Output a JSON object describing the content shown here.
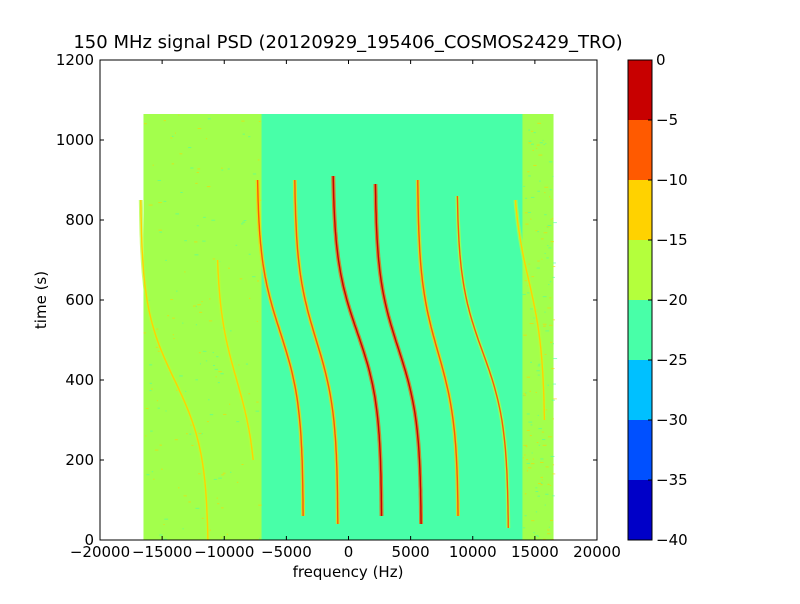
{
  "chart_data": {
    "type": "heatmap",
    "title": "150 MHz signal PSD (20120929_195406_COSMOS2429_TRO)",
    "xlabel": "frequency (Hz)",
    "ylabel": "time (s)",
    "xlim": [
      -20000,
      20000
    ],
    "ylim": [
      0,
      1200
    ],
    "x_ticks": [
      -20000,
      -15000,
      -10000,
      -5000,
      0,
      5000,
      10000,
      15000,
      20000
    ],
    "y_ticks": [
      0,
      200,
      400,
      600,
      800,
      1000,
      1200
    ],
    "data_extent": {
      "x": [
        -16500,
        16500
      ],
      "y": [
        0,
        1065
      ]
    },
    "noise_floor_edges": {
      "x": [
        -16500,
        -7000
      ],
      "value_db": -17.5
    },
    "noise_floor_edges_right": {
      "x": [
        14000,
        16500
      ],
      "value_db": -17.5
    },
    "noise_floor_center_db": -22.5,
    "colorbar": {
      "boundaries": [
        -40,
        -35,
        -30,
        -25,
        -20,
        -15,
        -10,
        -5,
        0
      ],
      "colors": [
        "#0000c8",
        "#0050ff",
        "#00c0ff",
        "#48ffa8",
        "#b4ff3c",
        "#ffd200",
        "#ff5a00",
        "#c80000"
      ],
      "ticks": [
        0,
        -5,
        -10,
        -15,
        -20,
        -25,
        -30,
        -35,
        -40
      ]
    },
    "series": [
      {
        "center_x": -14000,
        "center_y": 400,
        "halfwidth_x": 2500,
        "t_range": [
          0,
          850
        ],
        "peak_db": -12
      },
      {
        "center_x": -5500,
        "center_y": 520,
        "halfwidth_x": 1700,
        "t_range": [
          60,
          900
        ],
        "peak_db": -7
      },
      {
        "center_x": -2600,
        "center_y": 500,
        "halfwidth_x": 1600,
        "t_range": [
          40,
          900
        ],
        "peak_db": -8
      },
      {
        "center_x": 700,
        "center_y": 520,
        "halfwidth_x": 1800,
        "t_range": [
          60,
          910
        ],
        "peak_db": -3
      },
      {
        "center_x": 4000,
        "center_y": 480,
        "halfwidth_x": 1700,
        "t_range": [
          40,
          890
        ],
        "peak_db": -4
      },
      {
        "center_x": 7200,
        "center_y": 470,
        "halfwidth_x": 1500,
        "t_range": [
          60,
          900
        ],
        "peak_db": -6
      },
      {
        "center_x": 10800,
        "center_y": 470,
        "halfwidth_x": 1900,
        "t_range": [
          30,
          860
        ],
        "peak_db": -10
      },
      {
        "center_x": -9000,
        "center_y": 400,
        "halfwidth_x": 1500,
        "t_range": [
          200,
          700
        ],
        "peak_db": -13
      },
      {
        "center_x": 14500,
        "center_y": 650,
        "halfwidth_x": 1200,
        "t_range": [
          300,
          850
        ],
        "peak_db": -12
      }
    ],
    "legend": "colorbar-right",
    "grid": false
  }
}
